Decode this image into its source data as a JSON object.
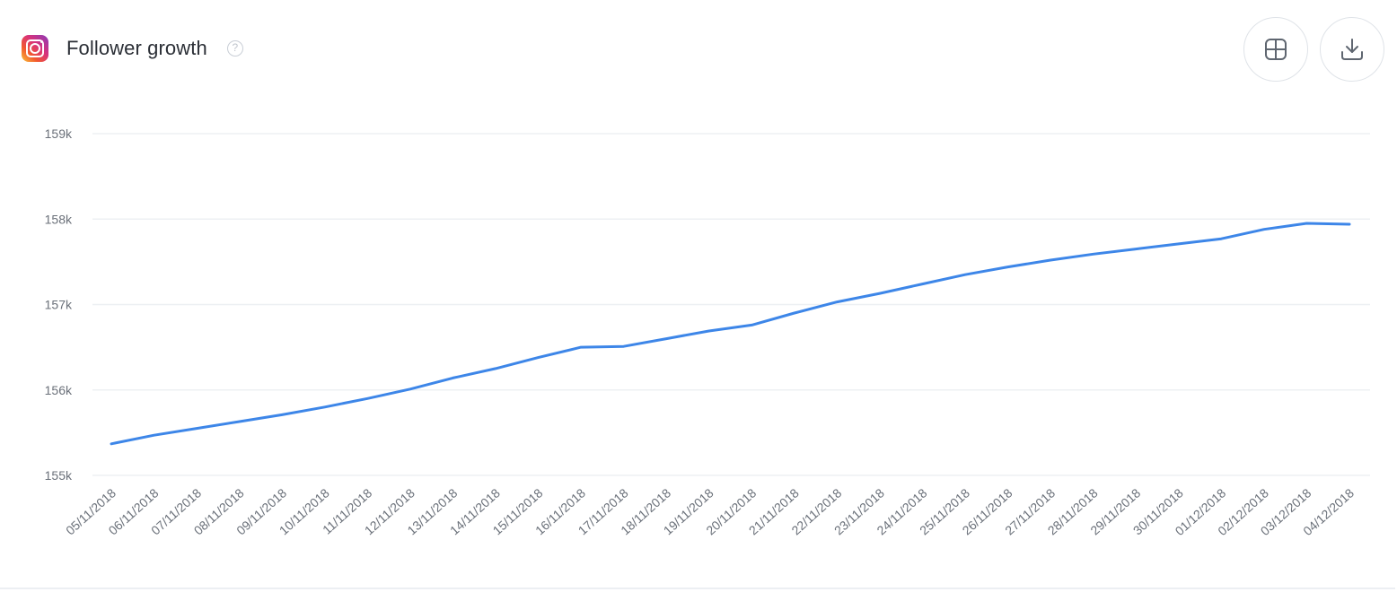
{
  "header": {
    "title": "Follower growth",
    "help_symbol": "?",
    "icons": [
      "instagram-icon",
      "help-icon"
    ]
  },
  "toolbar": {
    "buttons": [
      {
        "name": "table-view-button",
        "icon": "table-grid-icon"
      },
      {
        "name": "download-button",
        "icon": "download-icon"
      }
    ]
  },
  "colors": {
    "line": "#3d86e8",
    "grid": "#edf0f3",
    "tick_text": "#6b717a"
  },
  "chart_data": {
    "type": "line",
    "title": "Follower growth",
    "xlabel": "",
    "ylabel": "",
    "ylim": [
      155000,
      159000
    ],
    "yticks": [
      155000,
      156000,
      157000,
      158000,
      159000
    ],
    "ytick_labels": [
      "155k",
      "156k",
      "157k",
      "158k",
      "159k"
    ],
    "grid": true,
    "legend": "none",
    "categories": [
      "05/11/2018",
      "06/11/2018",
      "07/11/2018",
      "08/11/2018",
      "09/11/2018",
      "10/11/2018",
      "11/11/2018",
      "12/11/2018",
      "13/11/2018",
      "14/11/2018",
      "15/11/2018",
      "16/11/2018",
      "17/11/2018",
      "18/11/2018",
      "19/11/2018",
      "20/11/2018",
      "21/11/2018",
      "22/11/2018",
      "23/11/2018",
      "24/11/2018",
      "25/11/2018",
      "26/11/2018",
      "27/11/2018",
      "28/11/2018",
      "29/11/2018",
      "30/11/2018",
      "01/12/2018",
      "02/12/2018",
      "03/12/2018",
      "04/12/2018"
    ],
    "series": [
      {
        "values": [
          155370,
          155470,
          155550,
          155630,
          155710,
          155800,
          155900,
          156010,
          156140,
          156250,
          156380,
          156500,
          156510,
          156600,
          156690,
          156760,
          156900,
          157030,
          157130,
          157240,
          157350,
          157440,
          157520,
          157590,
          157650,
          157710,
          157770,
          157880,
          157950,
          157940
        ]
      }
    ]
  }
}
